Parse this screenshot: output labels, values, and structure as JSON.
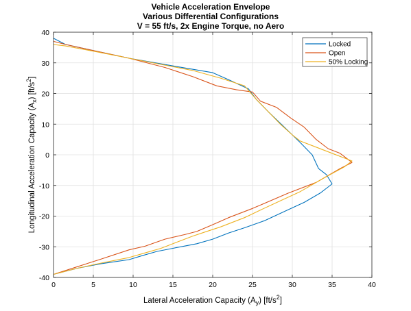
{
  "chart_data": {
    "type": "line",
    "title_lines": [
      "Vehicle Acceleration Envelope",
      "Various Differential Configurations",
      "V = 55 ft/s, 2x Engine Torque, no Aero"
    ],
    "xlabel": {
      "text": "Lateral Acceleration Capacity (A",
      "sub": "y",
      "unit": ") [ft/s",
      "sup": "2",
      "end": "]"
    },
    "ylabel": {
      "text": "Longitudinal Acceleration Capacity (A",
      "sub": "x",
      "unit": ") [ft/s",
      "sup": "2",
      "end": "]"
    },
    "xlim": [
      0,
      40
    ],
    "ylim": [
      -40,
      40
    ],
    "xticks": [
      0,
      5,
      10,
      15,
      20,
      25,
      30,
      35,
      40
    ],
    "yticks": [
      -40,
      -30,
      -20,
      -10,
      0,
      10,
      20,
      30,
      40
    ],
    "grid": true,
    "legend_position": "top-right",
    "series": [
      {
        "name": "Locked",
        "color": "#0072BD",
        "points": [
          [
            0,
            38
          ],
          [
            1.5,
            36
          ],
          [
            5,
            34
          ],
          [
            9.5,
            31.5
          ],
          [
            15,
            29
          ],
          [
            20,
            26.8
          ],
          [
            22,
            24.5
          ],
          [
            24.5,
            21.5
          ],
          [
            25.5,
            18
          ],
          [
            27,
            14
          ],
          [
            29,
            9
          ],
          [
            30,
            6.5
          ],
          [
            31,
            4
          ],
          [
            32.5,
            0
          ],
          [
            33.3,
            -4.5
          ],
          [
            34.3,
            -6.5
          ],
          [
            35,
            -9.5
          ],
          [
            34.5,
            -10.5
          ],
          [
            33.5,
            -12.5
          ],
          [
            31.5,
            -15.5
          ],
          [
            29,
            -18.5
          ],
          [
            26.5,
            -21.5
          ],
          [
            24,
            -23.8
          ],
          [
            22,
            -25.5
          ],
          [
            20,
            -27.5
          ],
          [
            18,
            -29
          ],
          [
            15,
            -30.5
          ],
          [
            13,
            -31.5
          ],
          [
            11,
            -33
          ],
          [
            9.5,
            -34.2
          ],
          [
            6,
            -35.5
          ],
          [
            3,
            -37
          ],
          [
            0,
            -39
          ]
        ]
      },
      {
        "name": "Open",
        "color": "#D95319",
        "points": [
          [
            0,
            37
          ],
          [
            1.5,
            36
          ],
          [
            5,
            34
          ],
          [
            9.5,
            31.5
          ],
          [
            14,
            28.5
          ],
          [
            17.5,
            25.5
          ],
          [
            20.5,
            22.5
          ],
          [
            23,
            21.2
          ],
          [
            25,
            20.5
          ],
          [
            26,
            17.5
          ],
          [
            28,
            15.5
          ],
          [
            29.8,
            12
          ],
          [
            31.5,
            9
          ],
          [
            33,
            5
          ],
          [
            34.5,
            2
          ],
          [
            36,
            0.5
          ],
          [
            37.5,
            -2.5
          ],
          [
            36,
            -4.5
          ],
          [
            33,
            -9
          ],
          [
            29.5,
            -12.5
          ],
          [
            25,
            -17.5
          ],
          [
            22,
            -20.5
          ],
          [
            20,
            -22.8
          ],
          [
            18,
            -25
          ],
          [
            16.5,
            -26
          ],
          [
            14,
            -27.5
          ],
          [
            11.5,
            -29.8
          ],
          [
            9.5,
            -31
          ],
          [
            6,
            -34
          ],
          [
            3,
            -36.5
          ],
          [
            0,
            -39
          ]
        ]
      },
      {
        "name": "50% Locking",
        "color": "#EDB120",
        "points": [
          [
            0,
            36
          ],
          [
            1.5,
            35.5
          ],
          [
            5,
            33.8
          ],
          [
            9.5,
            31.5
          ],
          [
            13.5,
            29.5
          ],
          [
            17.5,
            27.5
          ],
          [
            21,
            25
          ],
          [
            24,
            22.5
          ],
          [
            25.5,
            18
          ],
          [
            27,
            14
          ],
          [
            28.5,
            10
          ],
          [
            30,
            6.5
          ],
          [
            31,
            4.5
          ],
          [
            33,
            2.5
          ],
          [
            35,
            0.5
          ],
          [
            37.5,
            -2
          ],
          [
            36.5,
            -4
          ],
          [
            34,
            -7.5
          ],
          [
            31,
            -12
          ],
          [
            28.5,
            -15
          ],
          [
            26,
            -18
          ],
          [
            24,
            -20.5
          ],
          [
            21,
            -23.5
          ],
          [
            19,
            -25.2
          ],
          [
            17.5,
            -26.5
          ],
          [
            15.5,
            -28.5
          ],
          [
            13.5,
            -30.5
          ],
          [
            11.5,
            -32
          ],
          [
            9.5,
            -33.5
          ],
          [
            6,
            -35.3
          ],
          [
            3,
            -37
          ],
          [
            0,
            -39
          ]
        ]
      }
    ]
  }
}
